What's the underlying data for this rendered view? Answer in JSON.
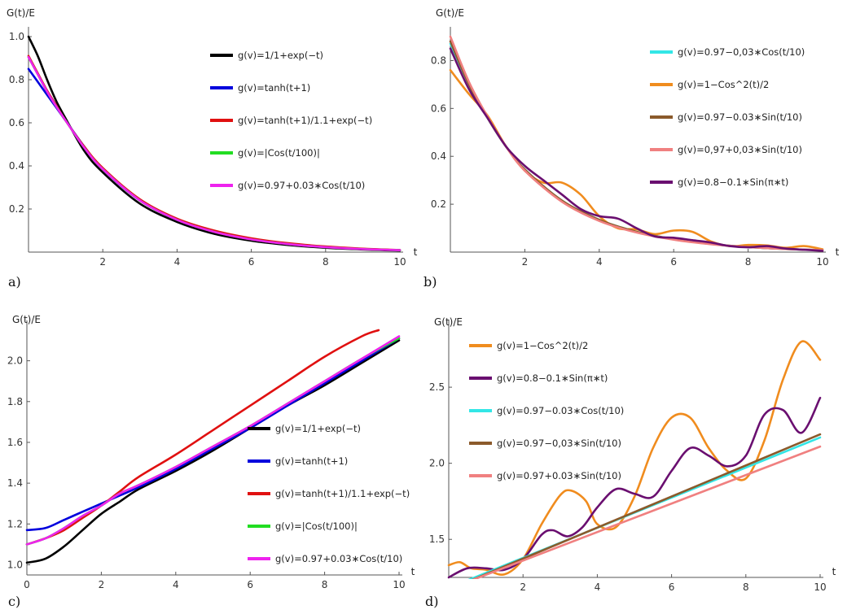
{
  "chart_data": [
    {
      "panel": "a)",
      "type": "line",
      "ylabel": "G(t)/E",
      "xlabel": "t",
      "xlim": [
        0,
        10
      ],
      "ylim": [
        0,
        1.0
      ],
      "xticks": [
        2,
        4,
        6,
        8,
        10
      ],
      "yticks": [
        0.2,
        0.4,
        0.6,
        0.8,
        1.0
      ],
      "legend_position": "top-right",
      "series": [
        {
          "name": "g(v)=1/1+exp(−t)",
          "color": "#000000",
          "x": [
            0,
            0.25,
            0.5,
            0.75,
            1,
            1.5,
            2,
            3,
            4,
            5,
            6,
            7,
            8,
            9,
            10
          ],
          "values": [
            1.0,
            0.91,
            0.8,
            0.7,
            0.62,
            0.47,
            0.37,
            0.225,
            0.14,
            0.085,
            0.053,
            0.033,
            0.02,
            0.012,
            0.007
          ]
        },
        {
          "name": "g(v)=tanh(t+1)",
          "color": "#0000dd",
          "x": [
            0,
            0.25,
            0.5,
            0.75,
            1,
            1.5,
            2,
            3,
            4,
            5,
            6,
            7,
            8,
            9,
            10
          ],
          "values": [
            0.85,
            0.79,
            0.73,
            0.67,
            0.61,
            0.49,
            0.385,
            0.24,
            0.15,
            0.095,
            0.06,
            0.038,
            0.024,
            0.015,
            0.009
          ]
        },
        {
          "name": "g(v)=tanh(t+1)/1.1+exp(−t)",
          "color": "#e01010",
          "x": [
            0,
            0.25,
            0.5,
            0.75,
            1,
            1.5,
            2,
            3,
            4,
            5,
            6,
            7,
            8,
            9,
            10
          ],
          "values": [
            0.91,
            0.83,
            0.75,
            0.68,
            0.61,
            0.49,
            0.39,
            0.245,
            0.155,
            0.1,
            0.064,
            0.041,
            0.026,
            0.016,
            0.01
          ]
        },
        {
          "name": "g(v)=|Cos(t/100)|",
          "color": "#22dd22",
          "x": [
            0,
            0.25,
            0.5,
            0.75,
            1,
            1.5,
            2,
            3,
            4,
            5,
            6,
            7,
            8,
            9,
            10
          ],
          "values": [
            0.905,
            0.825,
            0.745,
            0.675,
            0.61,
            0.485,
            0.385,
            0.24,
            0.15,
            0.094,
            0.059,
            0.037,
            0.023,
            0.014,
            0.009
          ]
        },
        {
          "name": "g(v)=0.97+0.03∗Cos(t/10)",
          "color": "#ee22ee",
          "x": [
            0,
            0.25,
            0.5,
            0.75,
            1,
            1.5,
            2,
            3,
            4,
            5,
            6,
            7,
            8,
            9,
            10
          ],
          "values": [
            0.905,
            0.825,
            0.745,
            0.675,
            0.61,
            0.485,
            0.385,
            0.24,
            0.15,
            0.094,
            0.059,
            0.037,
            0.023,
            0.014,
            0.009
          ]
        }
      ]
    },
    {
      "panel": "b)",
      "type": "line",
      "ylabel": "G(t)/E",
      "xlabel": "t",
      "xlim": [
        0,
        10
      ],
      "ylim": [
        0,
        0.9
      ],
      "xticks": [
        2,
        4,
        6,
        8,
        10
      ],
      "yticks": [
        0.2,
        0.4,
        0.6,
        0.8
      ],
      "legend_position": "top-right",
      "series": [
        {
          "name": "g(v)=0.97−0,03∗Cos(t/10)",
          "color": "#33e6e6",
          "x": [
            0,
            0.5,
            1,
            1.5,
            2,
            3,
            4,
            5,
            6,
            7,
            8,
            9,
            10
          ],
          "values": [
            0.87,
            0.7,
            0.56,
            0.44,
            0.345,
            0.215,
            0.135,
            0.085,
            0.054,
            0.034,
            0.021,
            0.013,
            0.008
          ]
        },
        {
          "name": "g(v)=1−Cos^2(t)/2",
          "color": "#f08c1e",
          "x": [
            0,
            0.5,
            1,
            1.5,
            2,
            2.5,
            3,
            3.5,
            4,
            4.5,
            5,
            5.5,
            6,
            6.5,
            7,
            7.5,
            8,
            8.5,
            9,
            9.5,
            10
          ],
          "values": [
            0.76,
            0.66,
            0.57,
            0.44,
            0.34,
            0.29,
            0.29,
            0.24,
            0.15,
            0.1,
            0.095,
            0.075,
            0.09,
            0.085,
            0.045,
            0.025,
            0.03,
            0.028,
            0.018,
            0.025,
            0.012
          ]
        },
        {
          "name": "g(v)=0.97−0.03∗Sin(t/10)",
          "color": "#8b5a2b",
          "x": [
            0,
            0.5,
            1,
            1.5,
            2,
            3,
            4,
            5,
            6,
            7,
            8,
            9,
            10
          ],
          "values": [
            0.88,
            0.7,
            0.56,
            0.44,
            0.345,
            0.215,
            0.135,
            0.085,
            0.054,
            0.034,
            0.021,
            0.013,
            0.008
          ]
        },
        {
          "name": "g(v)=0,97+0,03∗Sin(t/10)",
          "color": "#f08080",
          "x": [
            0,
            0.5,
            1,
            1.5,
            2,
            3,
            4,
            5,
            6,
            7,
            8,
            9,
            10
          ],
          "values": [
            0.9,
            0.71,
            0.565,
            0.44,
            0.34,
            0.21,
            0.13,
            0.082,
            0.052,
            0.033,
            0.021,
            0.013,
            0.008
          ]
        },
        {
          "name": "g(v)=0.8−0.1∗Sin(π∗t)",
          "color": "#6a0f70",
          "x": [
            0,
            0.5,
            1,
            1.5,
            2,
            2.5,
            3,
            3.5,
            4,
            4.5,
            5,
            5.5,
            6,
            6.5,
            7,
            7.5,
            8,
            8.5,
            9,
            9.5,
            10
          ],
          "values": [
            0.85,
            0.68,
            0.56,
            0.44,
            0.36,
            0.3,
            0.24,
            0.18,
            0.15,
            0.14,
            0.1,
            0.065,
            0.06,
            0.05,
            0.04,
            0.025,
            0.02,
            0.025,
            0.015,
            0.01,
            0.005
          ]
        }
      ]
    },
    {
      "panel": "c)",
      "type": "line",
      "ylabel": "G(t)/E",
      "xlabel": "t",
      "xlim": [
        0,
        10
      ],
      "ylim": [
        0.95,
        2.15
      ],
      "xticks": [
        0,
        2,
        4,
        6,
        8,
        10
      ],
      "yticks": [
        1.0,
        1.2,
        1.4,
        1.6,
        1.8,
        2.0
      ],
      "legend_position": "bottom-right",
      "series": [
        {
          "name": "g(v)=1/1+exp(−t)",
          "color": "#000000",
          "x": [
            0,
            0.5,
            1,
            1.5,
            2,
            2.5,
            3,
            4,
            5,
            6,
            7,
            8,
            9,
            10
          ],
          "values": [
            1.01,
            1.03,
            1.09,
            1.17,
            1.25,
            1.31,
            1.37,
            1.46,
            1.56,
            1.67,
            1.78,
            1.88,
            1.99,
            2.1
          ]
        },
        {
          "name": "g(v)=tanh(t+1)",
          "color": "#0000dd",
          "x": [
            0,
            0.5,
            1,
            1.5,
            2,
            2.5,
            3,
            4,
            5,
            6,
            7,
            8,
            9,
            10
          ],
          "values": [
            1.17,
            1.18,
            1.22,
            1.26,
            1.3,
            1.34,
            1.38,
            1.47,
            1.57,
            1.67,
            1.78,
            1.89,
            2.0,
            2.11
          ]
        },
        {
          "name": "g(v)=tanh(t+1)/1.1+exp(−t)",
          "color": "#e01010",
          "x": [
            0,
            0.5,
            1,
            1.5,
            2,
            2.5,
            3,
            4,
            5,
            6,
            7,
            8,
            9,
            9.45
          ],
          "values": [
            1.1,
            1.13,
            1.17,
            1.23,
            1.29,
            1.36,
            1.43,
            1.54,
            1.66,
            1.78,
            1.9,
            2.02,
            2.12,
            2.15
          ]
        },
        {
          "name": "g(v)=|Cos(t/100)|",
          "color": "#22dd22",
          "x": [
            0,
            0.5,
            1,
            1.5,
            2,
            2.5,
            3,
            4,
            5,
            6,
            7,
            8,
            9,
            10
          ],
          "values": [
            1.1,
            1.13,
            1.18,
            1.24,
            1.29,
            1.35,
            1.39,
            1.48,
            1.58,
            1.68,
            1.79,
            1.9,
            2.01,
            2.11
          ]
        },
        {
          "name": "g(v)=0.97+0.03∗Cos(t/10)",
          "color": "#ee22ee",
          "x": [
            0,
            0.5,
            1,
            1.5,
            2,
            2.5,
            3,
            4,
            5,
            6,
            7,
            8,
            9,
            10
          ],
          "values": [
            1.1,
            1.13,
            1.18,
            1.24,
            1.29,
            1.35,
            1.39,
            1.48,
            1.58,
            1.68,
            1.79,
            1.9,
            2.01,
            2.12
          ]
        }
      ]
    },
    {
      "panel": "d)",
      "type": "line",
      "ylabel": "G(t)/E",
      "xlabel": "t",
      "xlim": [
        0,
        10
      ],
      "ylim": [
        1.25,
        2.88
      ],
      "xticks": [
        2,
        4,
        6,
        8,
        10
      ],
      "yticks": [
        1.5,
        2.0,
        2.5
      ],
      "legend_position": "top-left",
      "series": [
        {
          "name": "g(v)=1−Cos^2(t)/2",
          "color": "#f08c1e",
          "x": [
            0,
            0.3,
            0.6,
            1,
            1.5,
            2,
            2.5,
            3,
            3.3,
            3.7,
            4,
            4.5,
            5,
            5.5,
            6,
            6.5,
            7,
            7.5,
            8,
            8.5,
            9,
            9.5,
            10
          ],
          "values": [
            1.33,
            1.35,
            1.31,
            1.3,
            1.27,
            1.37,
            1.6,
            1.79,
            1.82,
            1.75,
            1.6,
            1.58,
            1.78,
            2.1,
            2.3,
            2.3,
            2.1,
            1.95,
            1.9,
            2.15,
            2.55,
            2.8,
            2.68
          ]
        },
        {
          "name": "g(v)=0.8−0.1∗Sin(π∗t)",
          "color": "#6a0f70",
          "x": [
            0,
            0.5,
            1,
            1.5,
            2,
            2.5,
            2.8,
            3.2,
            3.6,
            4,
            4.5,
            5,
            5.5,
            6,
            6.5,
            7,
            7.5,
            8,
            8.5,
            9,
            9.5,
            10
          ],
          "values": [
            1.25,
            1.31,
            1.31,
            1.3,
            1.37,
            1.53,
            1.56,
            1.52,
            1.58,
            1.71,
            1.83,
            1.8,
            1.78,
            1.95,
            2.1,
            2.05,
            1.98,
            2.05,
            2.32,
            2.35,
            2.2,
            2.43
          ]
        },
        {
          "name": "g(v)=0.97−0.03∗Cos(t/10)",
          "color": "#33e6e6",
          "x": [
            0.5,
            10
          ],
          "values": [
            1.23,
            2.17
          ]
        },
        {
          "name": "g(v)=0.97−0,03∗Sin(t/10)",
          "color": "#8b5a2b",
          "x": [
            0.5,
            10
          ],
          "values": [
            1.22,
            2.19
          ]
        },
        {
          "name": "g(v)=0.97+0.03∗Sin(t/10)",
          "color": "#f08080",
          "x": [
            0.5,
            10
          ],
          "values": [
            1.22,
            2.11
          ]
        }
      ]
    }
  ]
}
